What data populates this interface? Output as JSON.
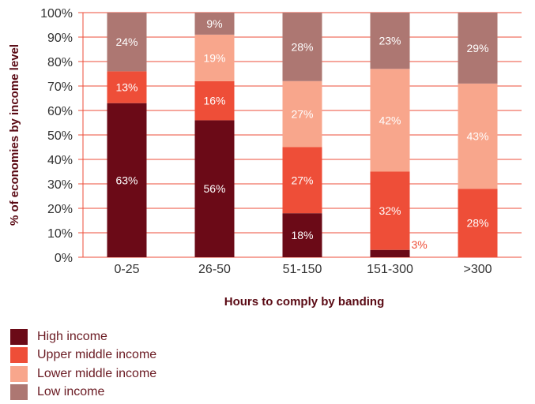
{
  "chart_data": {
    "type": "bar",
    "stacked": true,
    "categories": [
      "0-25",
      "26-50",
      "51-150",
      "151-300",
      ">300"
    ],
    "series": [
      {
        "name": "High income",
        "color": "#6b0a17",
        "label_color": "#ffffff",
        "values": [
          63,
          56,
          18,
          3,
          0
        ],
        "labels": [
          "63%",
          "56%",
          "18%",
          "",
          ""
        ]
      },
      {
        "name": "Upper middle income",
        "color": "#ee4e38",
        "label_color": "#ffffff",
        "values": [
          13,
          16,
          27,
          32,
          28
        ],
        "labels": [
          "13%",
          "16%",
          "27%",
          "32%",
          "28%"
        ]
      },
      {
        "name": "Lower middle income",
        "color": "#f8a68c",
        "label_color": "#ffffff",
        "values": [
          0,
          19,
          27,
          42,
          43
        ],
        "labels": [
          "",
          "19%",
          "27%",
          "42%",
          "43%"
        ]
      },
      {
        "name": "Low income",
        "color": "#ad7772",
        "label_color": "#ffffff",
        "values": [
          24,
          9,
          28,
          23,
          29
        ],
        "labels": [
          "24%",
          "9%",
          "28%",
          "23%",
          "29%"
        ]
      }
    ],
    "outside_labels": [
      {
        "category": "151-300",
        "text": "3%",
        "color": "#ee4e38"
      }
    ],
    "yticks": [
      "0%",
      "10%",
      "20%",
      "30%",
      "40%",
      "50%",
      "60%",
      "70%",
      "80%",
      "90%",
      "100%"
    ],
    "ylim": [
      0,
      100
    ],
    "xlabel": "Hours to comply by banding",
    "ylabel": "% of economies by income level",
    "grid": true,
    "legend_position": "bottom-left"
  }
}
